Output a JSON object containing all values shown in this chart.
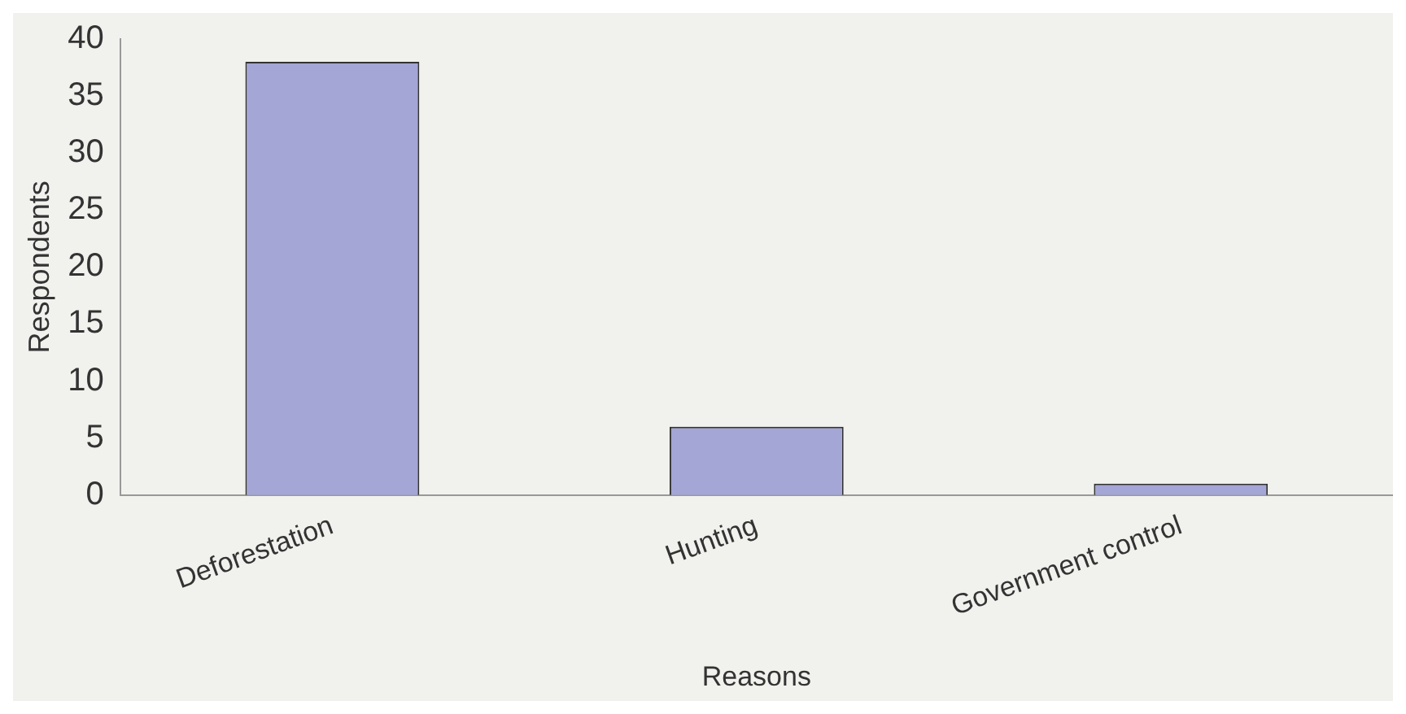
{
  "chart_data": {
    "type": "bar",
    "xlabel": "Reasons",
    "ylabel": "Respondents",
    "categories": [
      "Deforestation",
      "Hunting",
      "Government control"
    ],
    "values": [
      38,
      6,
      1
    ],
    "color": "#a4a6d6",
    "ylim": [
      0,
      40
    ],
    "yticks": [
      0,
      5,
      10,
      15,
      20,
      25,
      30,
      35,
      40
    ],
    "grid": false,
    "legend": false
  }
}
